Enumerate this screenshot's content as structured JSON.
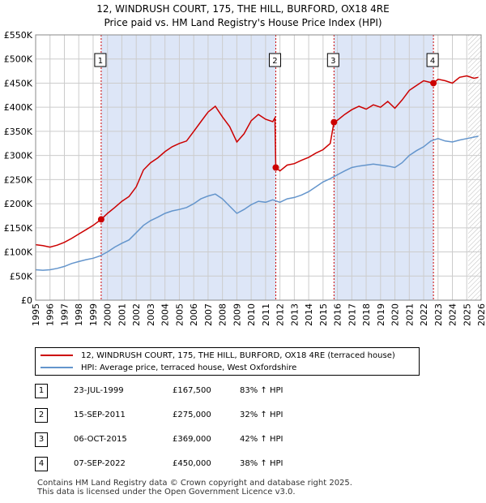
{
  "title_line1": "12, WINDRUSH COURT, 175, THE HILL, BURFORD, OX18 4RE",
  "title_line2": "Price paid vs. HM Land Registry's House Price Index (HPI)",
  "colors": {
    "property": "#cc0000",
    "hpi": "#6495cc",
    "shade": "#dde6f7",
    "grid": "#cccccc"
  },
  "chart_data": {
    "type": "line",
    "ylim": [
      0,
      550000
    ],
    "xlim": [
      1995.0,
      2026.0
    ],
    "y_ticks": [
      {
        "value": 0,
        "label": "£0"
      },
      {
        "value": 50000,
        "label": "£50K"
      },
      {
        "value": 100000,
        "label": "£100K"
      },
      {
        "value": 150000,
        "label": "£150K"
      },
      {
        "value": 200000,
        "label": "£200K"
      },
      {
        "value": 250000,
        "label": "£250K"
      },
      {
        "value": 300000,
        "label": "£300K"
      },
      {
        "value": 350000,
        "label": "£350K"
      },
      {
        "value": 400000,
        "label": "£400K"
      },
      {
        "value": 450000,
        "label": "£450K"
      },
      {
        "value": 500000,
        "label": "£500K"
      },
      {
        "value": 550000,
        "label": "£550K"
      }
    ],
    "x_ticks": [
      "1995",
      "1996",
      "1997",
      "1998",
      "1999",
      "2000",
      "2001",
      "2002",
      "2003",
      "2004",
      "2005",
      "2006",
      "2007",
      "2008",
      "2009",
      "2010",
      "2011",
      "2012",
      "2013",
      "2014",
      "2015",
      "2016",
      "2017",
      "2018",
      "2019",
      "2020",
      "2021",
      "2022",
      "2023",
      "2024",
      "2025",
      "2026"
    ],
    "shaded_periods": [
      [
        1999.56,
        2011.71
      ],
      [
        2015.76,
        2022.68
      ]
    ],
    "forecast_start": 2025.1,
    "series": [
      {
        "name": "12, WINDRUSH COURT, 175, THE HILL, BURFORD, OX18 4RE (terraced house)",
        "points": [
          [
            1995.0,
            115000
          ],
          [
            1995.5,
            113000
          ],
          [
            1996.0,
            110000
          ],
          [
            1996.5,
            114000
          ],
          [
            1997.0,
            120000
          ],
          [
            1997.5,
            128000
          ],
          [
            1998.0,
            137000
          ],
          [
            1998.5,
            146000
          ],
          [
            1999.0,
            155000
          ],
          [
            1999.56,
            167500
          ],
          [
            2000.0,
            180000
          ],
          [
            2000.5,
            192000
          ],
          [
            2001.0,
            205000
          ],
          [
            2001.5,
            215000
          ],
          [
            2002.0,
            235000
          ],
          [
            2002.5,
            270000
          ],
          [
            2003.0,
            285000
          ],
          [
            2003.5,
            295000
          ],
          [
            2004.0,
            308000
          ],
          [
            2004.5,
            318000
          ],
          [
            2005.0,
            325000
          ],
          [
            2005.5,
            330000
          ],
          [
            2006.0,
            350000
          ],
          [
            2006.5,
            370000
          ],
          [
            2007.0,
            390000
          ],
          [
            2007.5,
            402000
          ],
          [
            2008.0,
            380000
          ],
          [
            2008.5,
            360000
          ],
          [
            2009.0,
            328000
          ],
          [
            2009.5,
            345000
          ],
          [
            2010.0,
            372000
          ],
          [
            2010.5,
            385000
          ],
          [
            2011.0,
            375000
          ],
          [
            2011.5,
            370000
          ],
          [
            2011.65,
            378000
          ],
          [
            2011.71,
            275000
          ],
          [
            2012.0,
            268000
          ],
          [
            2012.5,
            280000
          ],
          [
            2013.0,
            283000
          ],
          [
            2013.5,
            290000
          ],
          [
            2014.0,
            296000
          ],
          [
            2014.5,
            305000
          ],
          [
            2015.0,
            312000
          ],
          [
            2015.5,
            325000
          ],
          [
            2015.76,
            369000
          ],
          [
            2016.0,
            373000
          ],
          [
            2016.5,
            385000
          ],
          [
            2017.0,
            395000
          ],
          [
            2017.5,
            402000
          ],
          [
            2018.0,
            396000
          ],
          [
            2018.5,
            405000
          ],
          [
            2019.0,
            400000
          ],
          [
            2019.5,
            412000
          ],
          [
            2020.0,
            398000
          ],
          [
            2020.5,
            415000
          ],
          [
            2021.0,
            435000
          ],
          [
            2021.5,
            445000
          ],
          [
            2022.0,
            455000
          ],
          [
            2022.68,
            450000
          ],
          [
            2023.0,
            458000
          ],
          [
            2023.5,
            455000
          ],
          [
            2024.0,
            450000
          ],
          [
            2024.5,
            462000
          ],
          [
            2025.0,
            465000
          ],
          [
            2025.5,
            460000
          ],
          [
            2025.8,
            462000
          ]
        ]
      },
      {
        "name": "HPI: Average price, terraced house, West Oxfordshire",
        "points": [
          [
            1995.0,
            63000
          ],
          [
            1995.5,
            62000
          ],
          [
            1996.0,
            63000
          ],
          [
            1996.5,
            66000
          ],
          [
            1997.0,
            70000
          ],
          [
            1997.5,
            76000
          ],
          [
            1998.0,
            80000
          ],
          [
            1998.5,
            84000
          ],
          [
            1999.0,
            87000
          ],
          [
            1999.5,
            92000
          ],
          [
            2000.0,
            100000
          ],
          [
            2000.5,
            110000
          ],
          [
            2001.0,
            118000
          ],
          [
            2001.5,
            125000
          ],
          [
            2002.0,
            140000
          ],
          [
            2002.5,
            155000
          ],
          [
            2003.0,
            165000
          ],
          [
            2003.5,
            172000
          ],
          [
            2004.0,
            180000
          ],
          [
            2004.5,
            185000
          ],
          [
            2005.0,
            188000
          ],
          [
            2005.5,
            192000
          ],
          [
            2006.0,
            200000
          ],
          [
            2006.5,
            210000
          ],
          [
            2007.0,
            216000
          ],
          [
            2007.5,
            220000
          ],
          [
            2008.0,
            210000
          ],
          [
            2008.5,
            195000
          ],
          [
            2009.0,
            180000
          ],
          [
            2009.5,
            188000
          ],
          [
            2010.0,
            198000
          ],
          [
            2010.5,
            205000
          ],
          [
            2011.0,
            203000
          ],
          [
            2011.5,
            208000
          ],
          [
            2012.0,
            203000
          ],
          [
            2012.5,
            210000
          ],
          [
            2013.0,
            213000
          ],
          [
            2013.5,
            218000
          ],
          [
            2014.0,
            225000
          ],
          [
            2014.5,
            235000
          ],
          [
            2015.0,
            245000
          ],
          [
            2015.5,
            252000
          ],
          [
            2016.0,
            260000
          ],
          [
            2016.5,
            268000
          ],
          [
            2017.0,
            275000
          ],
          [
            2017.5,
            278000
          ],
          [
            2018.0,
            280000
          ],
          [
            2018.5,
            282000
          ],
          [
            2019.0,
            280000
          ],
          [
            2019.5,
            278000
          ],
          [
            2020.0,
            275000
          ],
          [
            2020.5,
            285000
          ],
          [
            2021.0,
            300000
          ],
          [
            2021.5,
            310000
          ],
          [
            2022.0,
            318000
          ],
          [
            2022.5,
            330000
          ],
          [
            2023.0,
            335000
          ],
          [
            2023.5,
            330000
          ],
          [
            2024.0,
            328000
          ],
          [
            2024.5,
            332000
          ],
          [
            2025.0,
            335000
          ],
          [
            2025.5,
            338000
          ],
          [
            2025.8,
            340000
          ]
        ]
      }
    ],
    "sale_markers": [
      {
        "id": "1",
        "year": 1999.56,
        "price": 167500
      },
      {
        "id": "2",
        "year": 2011.71,
        "price": 275000
      },
      {
        "id": "3",
        "year": 2015.76,
        "price": 369000
      },
      {
        "id": "4",
        "year": 2022.68,
        "price": 450000
      }
    ]
  },
  "legend": {
    "property_label": "12, WINDRUSH COURT, 175, THE HILL, BURFORD, OX18 4RE (terraced house)",
    "hpi_label": "HPI: Average price, terraced house, West Oxfordshire"
  },
  "sales": [
    {
      "num": "1",
      "date": "23-JUL-1999",
      "price": "£167,500",
      "hpi": "83% ↑ HPI"
    },
    {
      "num": "2",
      "date": "15-SEP-2011",
      "price": "£275,000",
      "hpi": "32% ↑ HPI"
    },
    {
      "num": "3",
      "date": "06-OCT-2015",
      "price": "£369,000",
      "hpi": "42% ↑ HPI"
    },
    {
      "num": "4",
      "date": "07-SEP-2022",
      "price": "£450,000",
      "hpi": "38% ↑ HPI"
    }
  ],
  "footer_line1": "Contains HM Land Registry data © Crown copyright and database right 2025.",
  "footer_line2": "This data is licensed under the Open Government Licence v3.0."
}
